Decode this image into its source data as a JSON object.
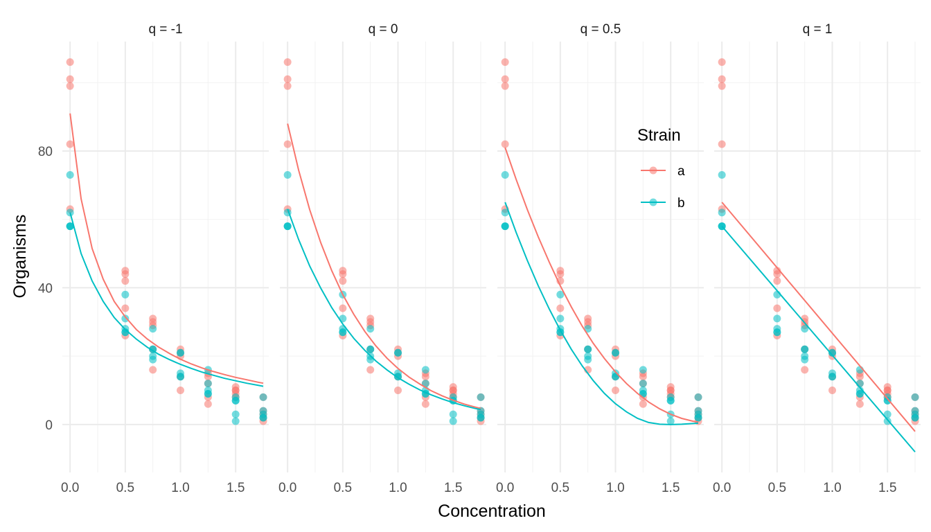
{
  "chart_data": {
    "type": "scatter",
    "xlabel": "Concentration",
    "ylabel": "Organisms",
    "xlim": [
      -0.07,
      1.8
    ],
    "ylim": [
      -14,
      112
    ],
    "x_ticks": [
      "0.0",
      "0.5",
      "1.0",
      "1.5"
    ],
    "y_ticks": [
      "0",
      "40",
      "80"
    ],
    "x_tick_values": [
      0,
      0.5,
      1.0,
      1.5
    ],
    "y_tick_values": [
      0,
      40,
      80
    ],
    "grid": true,
    "legend": {
      "title": "Strain",
      "placement": "inside-right",
      "entries": [
        {
          "label": "a",
          "color": "#F8766D"
        },
        {
          "label": "b",
          "color": "#00BFC4"
        }
      ]
    },
    "points": {
      "a": {
        "x": [
          0,
          0,
          0,
          0,
          0,
          0.5,
          0.5,
          0.5,
          0.5,
          0.5,
          0.75,
          0.75,
          0.75,
          0.75,
          0.75,
          1.0,
          1.0,
          1.0,
          1.0,
          1.0,
          1.25,
          1.25,
          1.25,
          1.25,
          1.25,
          1.5,
          1.5,
          1.5,
          1.5,
          1.5,
          1.75,
          1.75,
          1.75,
          1.75,
          1.75
        ],
        "y": [
          106,
          101,
          99,
          82,
          63,
          45,
          44,
          42,
          34,
          26,
          31,
          30,
          29,
          22,
          16,
          22,
          21,
          20,
          14,
          10,
          15,
          14,
          12,
          8,
          6,
          11,
          10,
          10,
          9,
          8,
          8,
          4,
          3,
          2,
          1
        ]
      },
      "b": {
        "x": [
          0,
          0,
          0,
          0,
          0,
          0.5,
          0.5,
          0.5,
          0.5,
          0.5,
          0.75,
          0.75,
          0.75,
          0.75,
          0.75,
          1.0,
          1.0,
          1.0,
          1.0,
          1.0,
          1.25,
          1.25,
          1.25,
          1.25,
          1.25,
          1.5,
          1.5,
          1.5,
          1.5,
          1.5,
          1.75,
          1.75,
          1.75,
          1.75,
          1.75
        ],
        "y": [
          73,
          62,
          58,
          58,
          58,
          38,
          31,
          28,
          27,
          27,
          28,
          22,
          20,
          19,
          22,
          21,
          21,
          15,
          14,
          14,
          16,
          12,
          10,
          9,
          9,
          8,
          7,
          7,
          3,
          1,
          8,
          4,
          3,
          2,
          2
        ]
      }
    },
    "panels": [
      {
        "title": "q = -1",
        "curves": {
          "a": {
            "x": [
              0,
              0.1,
              0.2,
              0.3,
              0.4,
              0.5,
              0.6,
              0.7,
              0.8,
              0.9,
              1.0,
              1.1,
              1.2,
              1.3,
              1.4,
              1.5,
              1.6,
              1.7,
              1.75
            ],
            "y": [
              91,
              66,
              51.5,
              42.5,
              36,
              31.5,
              27.8,
              25,
              22.7,
              20.8,
              19.1,
              17.7,
              16.5,
              15.5,
              14.6,
              13.8,
              13.1,
              12.4,
              12.1
            ]
          },
          "b": {
            "x": [
              0,
              0.1,
              0.2,
              0.3,
              0.4,
              0.5,
              0.6,
              0.7,
              0.8,
              0.9,
              1.0,
              1.1,
              1.2,
              1.3,
              1.4,
              1.5,
              1.6,
              1.7,
              1.75
            ],
            "y": [
              62,
              50,
              42,
              36,
              31.3,
              27.8,
              25,
              22.6,
              20.6,
              19,
              17.6,
              16.4,
              15.3,
              14.4,
              13.5,
              12.8,
              12.1,
              11.5,
              11.2
            ]
          }
        }
      },
      {
        "title": "q = 0",
        "curves": {
          "a": {
            "x": [
              0,
              0.1,
              0.2,
              0.3,
              0.4,
              0.5,
              0.6,
              0.7,
              0.8,
              0.9,
              1.0,
              1.1,
              1.2,
              1.3,
              1.4,
              1.5,
              1.6,
              1.7,
              1.75
            ],
            "y": [
              88,
              74.4,
              62.9,
              53.2,
              45,
              38,
              32.2,
              27.2,
              23,
              19.4,
              16.4,
              13.9,
              11.8,
              9.9,
              8.4,
              7.1,
              6,
              5.1,
              4.7
            ]
          },
          "b": {
            "x": [
              0,
              0.1,
              0.2,
              0.3,
              0.4,
              0.5,
              0.6,
              0.7,
              0.8,
              0.9,
              1.0,
              1.1,
              1.2,
              1.3,
              1.4,
              1.5,
              1.6,
              1.7,
              1.75
            ],
            "y": [
              63,
              54.1,
              46.4,
              39.9,
              34.2,
              29.4,
              25.2,
              21.7,
              18.6,
              16,
              13.7,
              11.8,
              10.1,
              8.7,
              7.5,
              6.4,
              5.5,
              4.7,
              4.4
            ]
          }
        }
      },
      {
        "title": "q = 0.5",
        "curves": {
          "a": {
            "x": [
              0,
              0.1,
              0.2,
              0.3,
              0.4,
              0.5,
              0.6,
              0.7,
              0.8,
              0.9,
              1.0,
              1.1,
              1.2,
              1.3,
              1.4,
              1.5,
              1.6,
              1.7,
              1.75
            ],
            "y": [
              81,
              71.7,
              63,
              54.9,
              47.5,
              40.6,
              34.4,
              28.7,
              23.7,
              19.3,
              15.4,
              12,
              9.1,
              6.6,
              4.6,
              3,
              1.8,
              1,
              0.7
            ]
          },
          "b": {
            "x": [
              0,
              0.1,
              0.2,
              0.3,
              0.4,
              0.5,
              0.6,
              0.7,
              0.8,
              0.9,
              1.0,
              1.1,
              1.2,
              1.3,
              1.4,
              1.5,
              1.6,
              1.7,
              1.75
            ],
            "y": [
              65,
              56.2,
              48.1,
              40.6,
              33.8,
              27.6,
              22,
              17.1,
              12.8,
              9.1,
              6.1,
              3.7,
              1.8,
              0.6,
              0.1,
              0,
              0.1,
              0.3,
              0.4
            ]
          }
        }
      },
      {
        "title": "q = 1",
        "curves": {
          "a": {
            "x": [
              0,
              1.75
            ],
            "y": [
              65,
              -2
            ]
          },
          "b": {
            "x": [
              0,
              1.75
            ],
            "y": [
              58,
              -8
            ]
          }
        }
      }
    ]
  }
}
